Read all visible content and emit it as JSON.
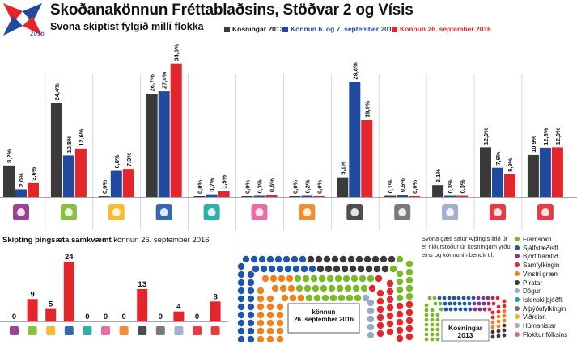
{
  "header": {
    "title": "Skoðanakönnun Fréttablaðsins, Stöðvar 2 og Vísis",
    "subtitle": "Svona skiptist fylgið milli flokka",
    "year": "2016"
  },
  "colors": {
    "k2013": "#3a3a3a",
    "poll1": "#214a9c",
    "poll2": "#e3262c"
  },
  "legend": [
    {
      "label": "Kosningar 2013",
      "color": "#3a3a3a",
      "bold_color": "#111111"
    },
    {
      "label": "Könnun 6. og 7. september 2016",
      "color": "#214a9c",
      "bold_color": "#214a9c"
    },
    {
      "label": "Könnun 26. september 2016",
      "color": "#e3262c",
      "bold_color": "#e3262c"
    }
  ],
  "chart_data": [
    {
      "type": "bar",
      "categories": [
        "Björt framtíð",
        "Framsókn",
        "Viðreisn",
        "Sjálfstæðisfl.",
        "Íslenski þjóðfl.",
        "Flokkur fólksins",
        "Húmanistar",
        "Píratar",
        "Alþýðufylkingin",
        "Dögun",
        "Samfylkingin",
        "Vinstri græn"
      ],
      "series": [
        {
          "name": "Kosningar 2013",
          "values": [
            8.2,
            24.4,
            0.0,
            26.7,
            0.0,
            0.0,
            0.0,
            5.1,
            0.1,
            3.1,
            12.9,
            10.9
          ],
          "labels": [
            "8,2%",
            "24,4%",
            "0,0%",
            "26,7%",
            "0,0%",
            "0,0%",
            "0,0%",
            "5,1%",
            "0,1%",
            "3,1%",
            "12,9%",
            "10,9%"
          ]
        },
        {
          "name": "Könnun 6. og 7. september 2016",
          "values": [
            2.0,
            10.8,
            6.8,
            27.4,
            0.7,
            0.3,
            0.2,
            29.8,
            0.6,
            0.3,
            7.6,
            12.8
          ],
          "labels": [
            "2,0%",
            "10,8%",
            "6,8%",
            "27,4%",
            "0,7%",
            "0,3%",
            "0,2%",
            "29,8%",
            "0,6%",
            "0,3%",
            "7,6%",
            "12,8%"
          ]
        },
        {
          "name": "Könnun 26. september 2016",
          "values": [
            3.6,
            12.6,
            7.3,
            34.6,
            1.5,
            0.6,
            0.0,
            19.9,
            0.0,
            0.3,
            5.9,
            12.9
          ],
          "labels": [
            "3,6%",
            "12,6%",
            "7,3%",
            "34,6%",
            "1,5%",
            "0,6%",
            "0,0%",
            "19,9%",
            "0,0%",
            "0,3%",
            "5,9%",
            "12,9%"
          ]
        }
      ],
      "ylim": [
        0,
        36
      ]
    },
    {
      "type": "bar",
      "title": "Skipting þingsæta samkvæmt könnun 26. september 2016",
      "categories": [
        "Björt framtíð",
        "Framsókn",
        "Viðreisn",
        "Sjálfstæðisfl.",
        "Íslenski þjóðfl.",
        "Flokkur fólksins",
        "Húmanistar",
        "Píratar",
        "Alþýðufylkingin",
        "Dögun",
        "Samfylkingin",
        "Vinstri græn"
      ],
      "values": [
        0,
        9,
        5,
        24,
        0,
        0,
        0,
        13,
        0,
        4,
        0,
        8
      ],
      "ylim": [
        0,
        24
      ]
    }
  ],
  "seats_panel": {
    "title_bold": "Skipting þingsæta samkvæmt",
    "title_rest": " könnun 26. september 2016"
  },
  "parliament": {
    "note": "Svona gæti salur Alþingis litið út ef niðurstöður úr kosningum yrðu eins og könnunin bendir til.",
    "center_label_1": "könnun",
    "center_label_2": "26. september 2016",
    "mini_label_1": "Kosningar",
    "mini_label_2": "2013"
  },
  "party_list": [
    {
      "name": "Framsókn",
      "color": "#7ab929"
    },
    {
      "name": "Sjálfstæðisfl.",
      "color": "#1f56a8"
    },
    {
      "name": "Björt framtíð",
      "color": "#8e2f8a"
    },
    {
      "name": "Samfylkingin",
      "color": "#e3262c"
    },
    {
      "name": "Vinstri græn",
      "color": "#f0821e"
    },
    {
      "name": "Píratar",
      "color": "#3a3a3a"
    },
    {
      "name": "Dögun",
      "color": "#9aa9c9"
    },
    {
      "name": "Íslenski þjóðfl.",
      "color": "#1aa5a0"
    },
    {
      "name": "Alþýðufylkingin",
      "color": "#6b6b6b"
    },
    {
      "name": "Viðreisn",
      "color": "#f6b21a"
    },
    {
      "name": "Húmanistar",
      "color": "#aaaaaa"
    },
    {
      "name": "Flokkur fólksins",
      "color": "#e85c9b"
    }
  ]
}
